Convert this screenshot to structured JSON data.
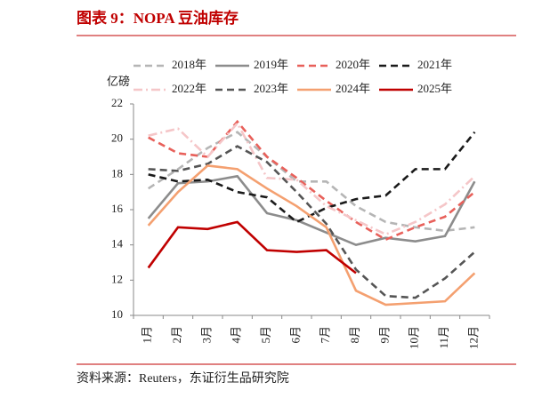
{
  "header": {
    "title": "图表 9：NOPA 豆油库存"
  },
  "chart_data": {
    "type": "line",
    "ylabel": "亿磅",
    "categories": [
      "1月",
      "2月",
      "3月",
      "4月",
      "5月",
      "6月",
      "7月",
      "8月",
      "9月",
      "10月",
      "11月",
      "12月"
    ],
    "ylim": [
      10,
      22
    ],
    "yticks": [
      10,
      12,
      14,
      16,
      18,
      20,
      22
    ],
    "series": [
      {
        "name": "2018年",
        "color": "#b5b5b5",
        "style": "dashed",
        "values": [
          17.2,
          18.3,
          19.5,
          20.4,
          19.0,
          17.6,
          17.6,
          16.2,
          15.3,
          15.0,
          14.8,
          15.0
        ]
      },
      {
        "name": "2019年",
        "color": "#8c8c8c",
        "style": "solid",
        "values": [
          15.5,
          17.5,
          17.6,
          17.9,
          15.8,
          15.4,
          14.7,
          14.0,
          14.4,
          14.2,
          14.5,
          17.6
        ]
      },
      {
        "name": "2020年",
        "color": "#e8605a",
        "style": "dashed",
        "values": [
          20.1,
          19.2,
          19.0,
          21.0,
          19.0,
          17.8,
          16.5,
          15.3,
          14.3,
          15.0,
          15.6,
          17.0
        ]
      },
      {
        "name": "2021年",
        "color": "#1a1a1a",
        "style": "dashed",
        "values": [
          18.0,
          17.6,
          17.7,
          17.0,
          16.7,
          15.3,
          16.1,
          16.6,
          16.8,
          18.3,
          18.3,
          20.4
        ]
      },
      {
        "name": "2022年",
        "color": "#f5c6c8",
        "style": "dashdot",
        "values": [
          20.2,
          20.6,
          19.0,
          20.9,
          17.8,
          17.7,
          16.2,
          15.4,
          14.6,
          15.3,
          16.3,
          17.9
        ]
      },
      {
        "name": "2023年",
        "color": "#555555",
        "style": "dashed",
        "values": [
          18.3,
          18.2,
          18.6,
          19.6,
          18.7,
          17.0,
          15.2,
          12.6,
          11.1,
          11.0,
          12.1,
          13.6
        ]
      },
      {
        "name": "2024年",
        "color": "#f4a070",
        "style": "solid",
        "values": [
          15.1,
          17.0,
          18.5,
          18.3,
          17.2,
          16.2,
          15.0,
          11.4,
          10.6,
          10.7,
          10.8,
          12.4
        ]
      },
      {
        "name": "2025年",
        "color": "#c00000",
        "style": "solid",
        "values": [
          12.7,
          15.0,
          14.9,
          15.3,
          13.7,
          13.6,
          13.7,
          12.4,
          null,
          null,
          null,
          null
        ]
      }
    ]
  },
  "footer": {
    "source": "资料来源：Reuters，东证衍生品研究院"
  }
}
